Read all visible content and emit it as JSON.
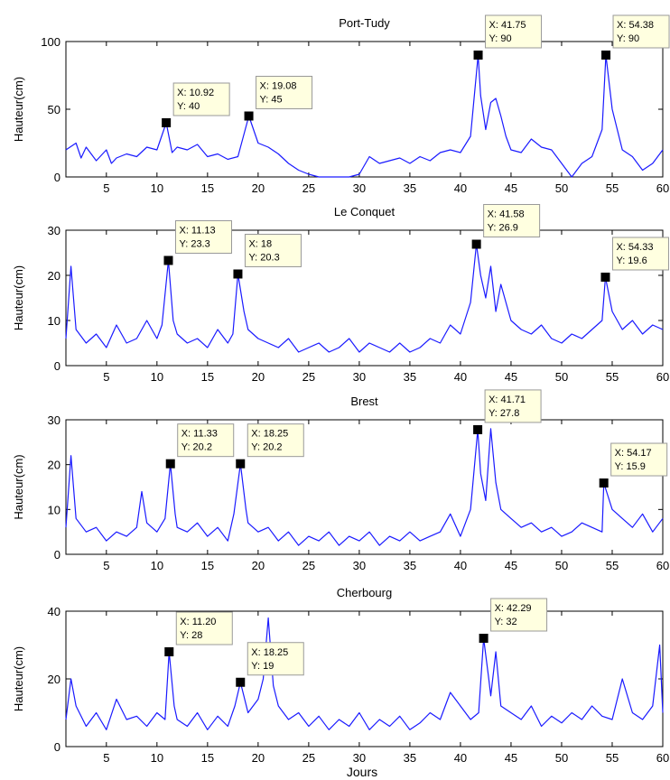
{
  "figure": {
    "xlabel": "Jours",
    "colors": {
      "line": "#1a1aff",
      "axes": "#000000",
      "datatip_bg": "#ffffe0",
      "datatip_border": "#999999",
      "marker": "#000000"
    }
  },
  "chart_data": [
    {
      "type": "line",
      "title": "Port-Tudy",
      "ylabel": "Hauteur(cm)",
      "xlabel": "",
      "xlim": [
        1,
        60
      ],
      "ylim": [
        0,
        100
      ],
      "xticks": [
        "5",
        "10",
        "15",
        "20",
        "25",
        "30",
        "35",
        "40",
        "45",
        "50",
        "55",
        "60"
      ],
      "yticks": [
        "0",
        "50",
        "100"
      ],
      "grid": false,
      "series": [
        {
          "x": [
            1,
            2,
            2.5,
            3,
            4,
            5,
            5.5,
            6,
            7,
            8,
            9,
            10,
            10.92,
            11.5,
            12,
            13,
            14,
            15,
            16,
            17,
            18,
            19.08,
            20,
            21,
            22,
            23,
            24,
            25,
            26,
            27,
            28,
            29,
            30,
            31,
            32,
            33,
            34,
            35,
            36,
            37,
            38,
            39,
            40,
            41,
            41.75,
            42,
            42.5,
            43,
            43.5,
            44,
            44.5,
            45,
            46,
            47,
            48,
            49,
            50,
            51,
            52,
            53,
            54,
            54.38,
            55,
            55.5,
            56,
            57,
            58,
            59,
            60
          ],
          "y": [
            20,
            25,
            14,
            22,
            12,
            20,
            10,
            14,
            17,
            15,
            22,
            20,
            40,
            18,
            22,
            20,
            24,
            15,
            17,
            13,
            15,
            45,
            25,
            22,
            17,
            10,
            5,
            2,
            0,
            0,
            0,
            0,
            2,
            15,
            10,
            12,
            14,
            10,
            15,
            12,
            18,
            20,
            18,
            30,
            90,
            60,
            35,
            55,
            58,
            45,
            30,
            20,
            18,
            28,
            22,
            20,
            10,
            0,
            10,
            15,
            35,
            90,
            50,
            35,
            20,
            15,
            5,
            10,
            20
          ]
        }
      ],
      "annotations": [
        {
          "x": 10.92,
          "y": 40,
          "label_x": "X: 10.92",
          "label_y": "Y: 40"
        },
        {
          "x": 19.08,
          "y": 45,
          "label_x": "X: 19.08",
          "label_y": "Y: 45"
        },
        {
          "x": 41.75,
          "y": 90,
          "label_x": "X: 41.75",
          "label_y": "Y: 90"
        },
        {
          "x": 54.38,
          "y": 90,
          "label_x": "X: 54.38",
          "label_y": "Y: 90"
        }
      ]
    },
    {
      "type": "line",
      "title": "Le Conquet",
      "ylabel": "Hauteur(cm)",
      "xlabel": "",
      "xlim": [
        1,
        60
      ],
      "ylim": [
        0,
        30
      ],
      "xticks": [
        "5",
        "10",
        "15",
        "20",
        "25",
        "30",
        "35",
        "40",
        "45",
        "50",
        "55",
        "60"
      ],
      "yticks": [
        "0",
        "10",
        "20",
        "30"
      ],
      "grid": false,
      "series": [
        {
          "x": [
            1,
            1.5,
            2,
            3,
            4,
            5,
            6,
            7,
            8,
            9,
            10,
            10.5,
            11.13,
            11.6,
            12,
            13,
            14,
            15,
            16,
            17,
            17.5,
            18,
            18.6,
            19,
            20,
            21,
            22,
            23,
            24,
            25,
            26,
            27,
            28,
            29,
            30,
            31,
            32,
            33,
            34,
            35,
            36,
            37,
            38,
            39,
            40,
            41,
            41.58,
            42,
            42.5,
            43,
            43.5,
            44,
            45,
            46,
            47,
            48,
            49,
            50,
            51,
            52,
            53,
            54,
            54.33,
            55,
            56,
            57,
            58,
            59,
            60
          ],
          "y": [
            6,
            22,
            8,
            5,
            7,
            4,
            9,
            5,
            6,
            10,
            6,
            9,
            23.3,
            10,
            7,
            5,
            6,
            4,
            8,
            5,
            7,
            20.3,
            12,
            8,
            6,
            5,
            4,
            6,
            3,
            4,
            5,
            3,
            4,
            6,
            3,
            5,
            4,
            3,
            5,
            3,
            4,
            6,
            5,
            9,
            7,
            14,
            26.9,
            20,
            15,
            22,
            12,
            18,
            10,
            8,
            7,
            9,
            6,
            5,
            7,
            6,
            8,
            10,
            19.6,
            12,
            8,
            10,
            7,
            9,
            8
          ]
        }
      ],
      "annotations": [
        {
          "x": 11.13,
          "y": 23.3,
          "label_x": "X: 11.13",
          "label_y": "Y: 23.3"
        },
        {
          "x": 18,
          "y": 20.3,
          "label_x": "X: 18",
          "label_y": "Y: 20.3"
        },
        {
          "x": 41.58,
          "y": 26.9,
          "label_x": "X: 41.58",
          "label_y": "Y: 26.9"
        },
        {
          "x": 54.33,
          "y": 19.6,
          "label_x": "X: 54.33",
          "label_y": "Y: 19.6"
        }
      ]
    },
    {
      "type": "line",
      "title": "Brest",
      "ylabel": "Hauteur(cm)",
      "xlabel": "",
      "xlim": [
        1,
        60
      ],
      "ylim": [
        0,
        30
      ],
      "xticks": [
        "5",
        "10",
        "15",
        "20",
        "25",
        "30",
        "35",
        "40",
        "45",
        "50",
        "55",
        "60"
      ],
      "yticks": [
        "0",
        "10",
        "20",
        "30"
      ],
      "grid": false,
      "series": [
        {
          "x": [
            1,
            1.5,
            2,
            3,
            4,
            5,
            6,
            7,
            8,
            8.5,
            9,
            10,
            10.8,
            11.33,
            11.8,
            12,
            13,
            14,
            15,
            16,
            17,
            17.6,
            18.25,
            18.8,
            19,
            20,
            21,
            22,
            23,
            24,
            25,
            26,
            27,
            28,
            29,
            30,
            31,
            32,
            33,
            34,
            35,
            36,
            37,
            38,
            39,
            40,
            41,
            41.71,
            42,
            42.5,
            43,
            43.5,
            44,
            45,
            46,
            47,
            48,
            49,
            50,
            51,
            52,
            53,
            54,
            54.17,
            55,
            56,
            57,
            58,
            59,
            60
          ],
          "y": [
            6,
            22,
            8,
            5,
            6,
            3,
            5,
            4,
            6,
            14,
            7,
            5,
            8,
            20.2,
            9,
            6,
            5,
            7,
            4,
            6,
            3,
            9,
            20.2,
            10,
            7,
            5,
            6,
            3,
            5,
            2,
            4,
            3,
            5,
            2,
            4,
            3,
            5,
            2,
            4,
            3,
            5,
            3,
            4,
            5,
            9,
            4,
            10,
            27.8,
            18,
            12,
            28,
            16,
            10,
            8,
            6,
            7,
            5,
            6,
            4,
            5,
            7,
            6,
            5,
            15.9,
            10,
            8,
            6,
            9,
            5,
            8
          ]
        }
      ],
      "annotations": [
        {
          "x": 11.33,
          "y": 20.2,
          "label_x": "X: 11.33",
          "label_y": "Y: 20.2"
        },
        {
          "x": 18.25,
          "y": 20.2,
          "label_x": "X: 18.25",
          "label_y": "Y: 20.2"
        },
        {
          "x": 41.71,
          "y": 27.8,
          "label_x": "X: 41.71",
          "label_y": "Y: 27.8"
        },
        {
          "x": 54.17,
          "y": 15.9,
          "label_x": "X: 54.17",
          "label_y": "Y: 15.9"
        }
      ]
    },
    {
      "type": "line",
      "title": "Cherbourg",
      "ylabel": "Hauteur(cm)",
      "xlabel": "Jours",
      "xlim": [
        1,
        60
      ],
      "ylim": [
        0,
        40
      ],
      "xticks": [
        "5",
        "10",
        "15",
        "20",
        "25",
        "30",
        "35",
        "40",
        "45",
        "50",
        "55",
        "60"
      ],
      "yticks": [
        "0",
        "20",
        "40"
      ],
      "grid": false,
      "series": [
        {
          "x": [
            1,
            1.5,
            2,
            3,
            4,
            5,
            6,
            7,
            8,
            9,
            10,
            10.8,
            11.2,
            11.7,
            12,
            13,
            14,
            15,
            16,
            17,
            17.7,
            18.25,
            19,
            20,
            20.5,
            21,
            21.5,
            22,
            23,
            24,
            25,
            26,
            27,
            28,
            29,
            30,
            31,
            32,
            33,
            34,
            35,
            36,
            37,
            38,
            39,
            40,
            41,
            41.8,
            42.29,
            42.8,
            43,
            43.5,
            44,
            45,
            46,
            47,
            48,
            49,
            50,
            51,
            52,
            53,
            54,
            55,
            56,
            57,
            58,
            59,
            59.7,
            60
          ],
          "y": [
            8,
            20,
            12,
            6,
            10,
            5,
            14,
            8,
            9,
            6,
            10,
            8,
            28,
            12,
            8,
            6,
            10,
            5,
            9,
            6,
            12,
            19,
            10,
            14,
            20,
            38,
            18,
            12,
            8,
            10,
            6,
            9,
            5,
            8,
            6,
            10,
            5,
            8,
            6,
            9,
            5,
            7,
            10,
            8,
            16,
            12,
            8,
            10,
            32,
            20,
            15,
            28,
            12,
            10,
            8,
            12,
            6,
            9,
            7,
            10,
            8,
            12,
            9,
            8,
            20,
            10,
            8,
            12,
            30,
            10
          ]
        }
      ],
      "annotations": [
        {
          "x": 11.2,
          "y": 28,
          "label_x": "X: 11.20",
          "label_y": "Y: 28"
        },
        {
          "x": 18.25,
          "y": 19,
          "label_x": "X: 18.25",
          "label_y": "Y: 19"
        },
        {
          "x": 42.29,
          "y": 32,
          "label_x": "X: 42.29",
          "label_y": "Y: 32"
        }
      ]
    }
  ]
}
